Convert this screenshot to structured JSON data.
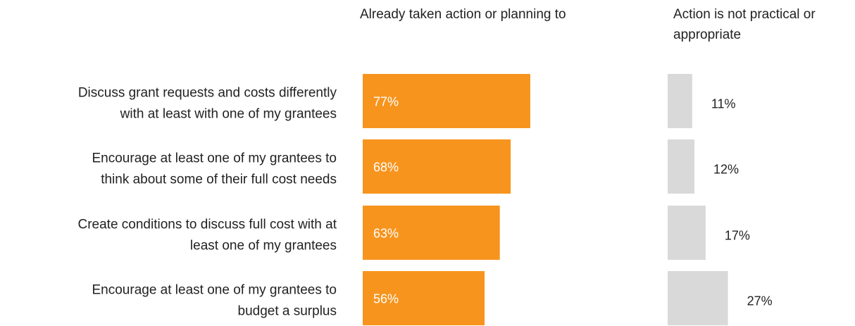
{
  "chart_data": {
    "type": "bar",
    "orientation": "horizontal",
    "categories": [
      "Discuss grant requests and costs differently with at least with one of my grantees",
      "Encourage at least one of my grantees to think about some of their full cost needs",
      "Create conditions to discuss full cost with at least one of my grantees",
      "Encourage at least one of my grantees to budget a surplus"
    ],
    "category_lines": [
      [
        "Discuss grant requests and costs differently",
        "with at least with one of my grantees"
      ],
      [
        "Encourage at least one of my grantees to",
        "think about some of their full cost needs"
      ],
      [
        "Create conditions to discuss full cost with at",
        "least one of my grantees"
      ],
      [
        "Encourage at least one of my grantees to",
        "budget a surplus"
      ]
    ],
    "series": [
      {
        "name": "Already taken action or planning to",
        "values": [
          77,
          68,
          63,
          56
        ],
        "labels": [
          "77%",
          "68%",
          "63%",
          "56%"
        ],
        "color": "#F7941D",
        "label_color": "#ffffff"
      },
      {
        "name": "Action is not practical or appropriate",
        "values": [
          11,
          12,
          17,
          27
        ],
        "labels": [
          "11%",
          "12%",
          "17%",
          "27%"
        ],
        "color": "#D9D9D9",
        "label_color": "#222222"
      }
    ],
    "unit": "%",
    "xlim": [
      0,
      100
    ],
    "grid": false,
    "legend": "column headers above each bar group"
  }
}
